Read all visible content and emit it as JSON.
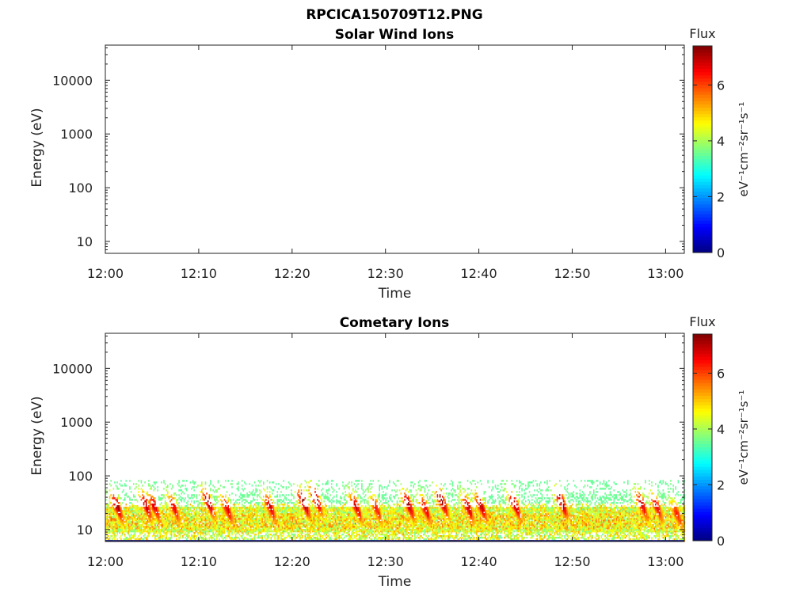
{
  "figure": {
    "title": "RPCICA150709T12.PNG"
  },
  "colors": {
    "axis": "#222222",
    "background": "#ffffff"
  },
  "colormap": "jet",
  "chart_data": [
    {
      "type": "heatmap",
      "title": "Solar Wind Ions",
      "xlabel": "Time",
      "ylabel": "Energy (eV)",
      "x_ticks": [
        "12:00",
        "12:10",
        "12:20",
        "12:30",
        "12:40",
        "12:50",
        "13:00"
      ],
      "x_range_minutes": [
        0,
        62
      ],
      "y_scale": "log",
      "y_ticks": [
        "10",
        "100",
        "1000",
        "10000"
      ],
      "y_range": [
        6,
        45000
      ],
      "colorbar": {
        "title": "Flux",
        "label": "eV⁻¹cm⁻²sr⁻¹s⁻¹",
        "ticks": [
          "0",
          "2",
          "4",
          "6"
        ],
        "range": [
          0,
          7.4
        ]
      },
      "events": []
    },
    {
      "type": "heatmap",
      "title": "Cometary Ions",
      "xlabel": "Time",
      "ylabel": "Energy (eV)",
      "x_ticks": [
        "12:00",
        "12:10",
        "12:20",
        "12:30",
        "12:40",
        "12:50",
        "13:00"
      ],
      "x_range_minutes": [
        0,
        62
      ],
      "y_scale": "log",
      "y_ticks": [
        "10",
        "100",
        "1000",
        "10000"
      ],
      "y_range": [
        6,
        45000
      ],
      "colorbar": {
        "title": "Flux",
        "label": "eV⁻¹cm⁻²sr⁻¹s⁻¹",
        "ticks": [
          "0",
          "2",
          "4",
          "6"
        ],
        "range": [
          0,
          7.4
        ]
      },
      "background_energy_range_eV": [
        6,
        80
      ],
      "background_flux_range": [
        3.5,
        5.3
      ],
      "events": [
        {
          "t_min": 1.2,
          "peak_energy_eV": 20,
          "flux": 7.1
        },
        {
          "t_min": 4.3,
          "peak_energy_eV": 21,
          "flux": 6.9
        },
        {
          "t_min": 5.2,
          "peak_energy_eV": 20,
          "flux": 6.7
        },
        {
          "t_min": 7.3,
          "peak_energy_eV": 19,
          "flux": 6.5
        },
        {
          "t_min": 11.0,
          "peak_energy_eV": 24,
          "flux": 7.1
        },
        {
          "t_min": 13.0,
          "peak_energy_eV": 18,
          "flux": 6.6
        },
        {
          "t_min": 17.6,
          "peak_energy_eV": 20,
          "flux": 6.8
        },
        {
          "t_min": 21.2,
          "peak_energy_eV": 24,
          "flux": 7.3
        },
        {
          "t_min": 22.5,
          "peak_energy_eV": 28,
          "flux": 7.3
        },
        {
          "t_min": 26.8,
          "peak_energy_eV": 20,
          "flux": 6.8
        },
        {
          "t_min": 29.0,
          "peak_energy_eV": 18,
          "flux": 6.3
        },
        {
          "t_min": 32.4,
          "peak_energy_eV": 22,
          "flux": 7.1
        },
        {
          "t_min": 34.2,
          "peak_energy_eV": 18,
          "flux": 6.6
        },
        {
          "t_min": 36.0,
          "peak_energy_eV": 25,
          "flux": 7.3
        },
        {
          "t_min": 38.8,
          "peak_energy_eV": 19,
          "flux": 6.8
        },
        {
          "t_min": 40.2,
          "peak_energy_eV": 20,
          "flux": 6.9
        },
        {
          "t_min": 43.8,
          "peak_energy_eV": 22,
          "flux": 7.1
        },
        {
          "t_min": 48.8,
          "peak_energy_eV": 24,
          "flux": 7.2
        },
        {
          "t_min": 57.4,
          "peak_energy_eV": 22,
          "flux": 6.8
        },
        {
          "t_min": 59.0,
          "peak_energy_eV": 20,
          "flux": 6.6
        },
        {
          "t_min": 61.2,
          "peak_energy_eV": 14,
          "flux": 6.2
        }
      ]
    }
  ]
}
